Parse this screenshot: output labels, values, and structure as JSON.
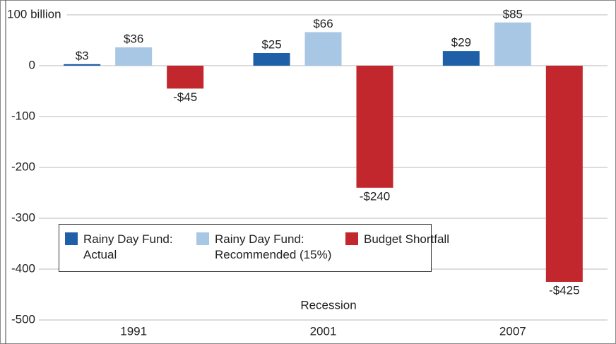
{
  "chart_data": {
    "type": "bar",
    "categories": [
      "1991",
      "2001",
      "2007"
    ],
    "x_label": "Recession",
    "series": [
      {
        "name": "Rainy Day Fund: Actual",
        "color": "#1f5fa8",
        "values": [
          3,
          25,
          29
        ],
        "value_labels": [
          "$3",
          "$25",
          "$29"
        ]
      },
      {
        "name": "Rainy Day Fund: Recommended (15%)",
        "color": "#a8c7e4",
        "values": [
          36,
          66,
          85
        ],
        "value_labels": [
          "$36",
          "$66",
          "$85"
        ]
      },
      {
        "name": "Budget Shortfall",
        "color": "#c1272d",
        "values": [
          -45,
          -240,
          -425
        ],
        "value_labels": [
          "-$45",
          "-$240",
          "-$425"
        ]
      }
    ],
    "ylim": [
      -500,
      125
    ],
    "yticks": [
      {
        "value": 100,
        "label": "100 billion"
      },
      0,
      -100,
      -200,
      -300,
      -400,
      -500
    ],
    "grid": true
  }
}
